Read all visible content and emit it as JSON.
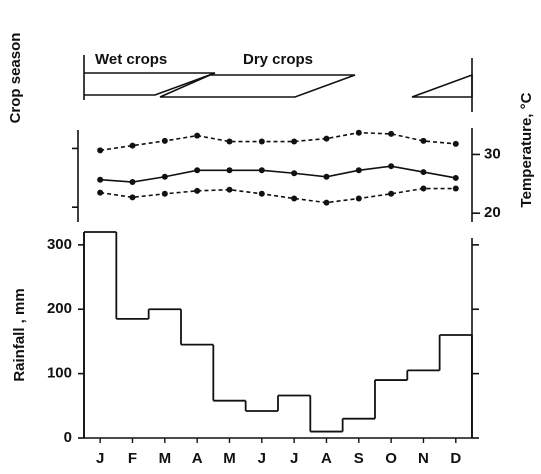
{
  "crop_season": {
    "label": "Crop season",
    "items": [
      "Wet crops",
      "Dry crops"
    ]
  },
  "chart_data": [
    {
      "type": "line",
      "y_label": "Temperature, °C",
      "ylim": [
        18.5,
        34.5
      ],
      "yticks": [
        20,
        30
      ],
      "color": "#111",
      "series": [
        {
          "style": "dashed",
          "values": [
            30.7,
            31.5,
            32.3,
            33.2,
            32.2,
            32.2,
            32.2,
            32.7,
            33.7,
            33.5,
            32.3,
            31.8
          ]
        },
        {
          "style": "solid",
          "values": [
            25.7,
            25.3,
            26.2,
            27.3,
            27.3,
            27.3,
            26.8,
            26.2,
            27.3,
            28,
            27,
            26
          ]
        },
        {
          "style": "dashed",
          "values": [
            23.5,
            22.7,
            23.3,
            23.8,
            24,
            23.3,
            22.5,
            21.8,
            22.5,
            23.3,
            24.2,
            24.2
          ]
        }
      ]
    },
    {
      "type": "step",
      "y_label": "Rainfall , mm",
      "color": "#111",
      "categories": [
        "J",
        "F",
        "M",
        "A",
        "M",
        "J",
        "J",
        "A",
        "S",
        "O",
        "N",
        "D"
      ],
      "values": [
        320,
        185,
        200,
        145,
        58,
        42,
        66,
        10,
        30,
        90,
        105,
        160
      ],
      "ylim": [
        0,
        320
      ],
      "yticks": [
        0,
        100,
        200,
        300
      ]
    }
  ]
}
